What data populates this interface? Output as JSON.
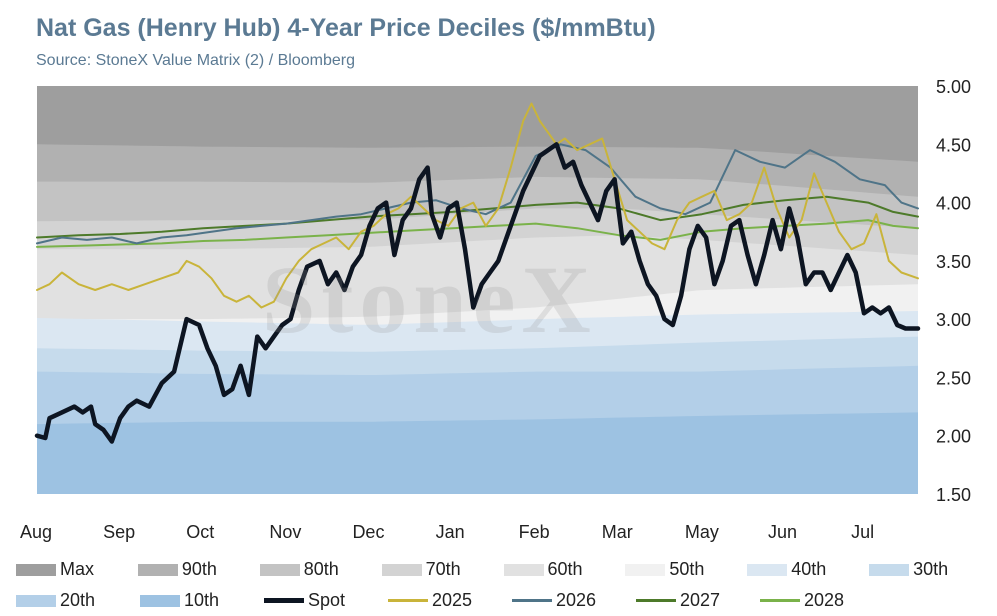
{
  "header": {
    "title": "Nat Gas (Henry Hub) 4-Year Price Deciles ($/mmBtu)",
    "subtitle": "Source: StoneX Value Matrix (2) / Bloomberg"
  },
  "watermark": "StoneX",
  "colors": {
    "Max": "#9e9e9e",
    "90th": "#b1b1b1",
    "80th": "#c3c3c3",
    "70th": "#d3d3d3",
    "60th": "#e1e1e1",
    "50th": "#f1f1f1",
    "40th": "#dbe7f2",
    "30th": "#c6dbec",
    "20th": "#b3cfe8",
    "10th": "#9dc2e2",
    "Spot": "#0d1522",
    "2025": "#c9b43a",
    "2026": "#4f7488",
    "2027": "#4d7a2a",
    "2028": "#7ab24a"
  },
  "chart_data": {
    "type": "area",
    "title": "Nat Gas (Henry Hub) 4-Year Price Deciles ($/mmBtu)",
    "ylim": [
      1.5,
      5.0
    ],
    "yticks": [
      "5.00",
      "4.50",
      "4.00",
      "3.50",
      "3.00",
      "2.50",
      "2.00",
      "1.50"
    ],
    "ytick_values": [
      5.0,
      4.5,
      4.0,
      3.5,
      3.0,
      2.5,
      2.0,
      1.5
    ],
    "months": [
      "Aug",
      "Sep",
      "Oct",
      "Nov",
      "Dec",
      "Jan",
      "Feb",
      "Mar",
      "May",
      "Jun",
      "Jul"
    ],
    "month_positions": [
      0,
      1,
      2,
      3,
      4,
      5,
      6,
      7,
      8,
      9,
      10
    ],
    "x_range": [
      0,
      10.6
    ],
    "grid": true,
    "legend_position": "bottom",
    "deciles": [
      {
        "name": "Max",
        "x": [
          0,
          10.6
        ],
        "values": [
          5.0,
          5.0
        ]
      },
      {
        "name": "90th",
        "x": [
          0,
          2,
          4,
          6,
          8,
          10.6
        ],
        "values": [
          4.5,
          4.48,
          4.47,
          4.48,
          4.47,
          4.35
        ]
      },
      {
        "name": "80th",
        "x": [
          0,
          2,
          4,
          6,
          8,
          10.6
        ],
        "values": [
          4.18,
          4.18,
          4.17,
          4.22,
          4.2,
          4.05
        ]
      },
      {
        "name": "70th",
        "x": [
          0,
          2,
          4,
          6,
          7,
          8,
          10.6
        ],
        "values": [
          3.84,
          3.85,
          3.85,
          3.95,
          3.95,
          3.9,
          3.78
        ]
      },
      {
        "name": "60th",
        "x": [
          0,
          2,
          4,
          6,
          7,
          8,
          10.6
        ],
        "values": [
          3.6,
          3.6,
          3.62,
          3.7,
          3.72,
          3.68,
          3.55
        ]
      },
      {
        "name": "50th",
        "x": [
          0,
          2,
          4,
          6,
          8,
          10.6
        ],
        "values": [
          3.0,
          3.0,
          3.02,
          3.1,
          3.25,
          3.3
        ]
      },
      {
        "name": "40th",
        "x": [
          0,
          2,
          4,
          6,
          8,
          10.6
        ],
        "values": [
          3.01,
          2.98,
          2.95,
          3.0,
          3.04,
          3.07
        ]
      },
      {
        "name": "30th",
        "x": [
          0,
          2,
          4,
          6,
          8,
          10.6
        ],
        "values": [
          2.75,
          2.73,
          2.72,
          2.75,
          2.8,
          2.85
        ]
      },
      {
        "name": "20th",
        "x": [
          0,
          2,
          4,
          6,
          8,
          10.6
        ],
        "values": [
          2.55,
          2.53,
          2.52,
          2.55,
          2.55,
          2.6
        ]
      },
      {
        "name": "10th",
        "x": [
          0,
          2,
          4,
          6,
          8,
          10.6
        ],
        "values": [
          2.1,
          2.12,
          2.12,
          2.14,
          2.17,
          2.2
        ]
      }
    ],
    "series": [
      {
        "name": "Spot",
        "x": [
          0,
          0.1,
          0.15,
          0.3,
          0.45,
          0.55,
          0.65,
          0.7,
          0.8,
          0.9,
          1.0,
          1.1,
          1.2,
          1.35,
          1.5,
          1.65,
          1.8,
          1.95,
          2.05,
          2.15,
          2.25,
          2.35,
          2.45,
          2.55,
          2.65,
          2.75,
          2.85,
          2.95,
          3.05,
          3.15,
          3.25,
          3.4,
          3.5,
          3.6,
          3.7,
          3.8,
          3.9,
          4.0,
          4.1,
          4.2,
          4.3,
          4.4,
          4.5,
          4.6,
          4.7,
          4.75,
          4.85,
          4.95,
          5.05,
          5.15,
          5.25,
          5.35,
          5.45,
          5.55,
          5.65,
          5.75,
          5.85,
          5.95,
          6.05,
          6.15,
          6.25,
          6.35,
          6.45,
          6.55,
          6.65,
          6.75,
          6.85,
          6.95,
          7.05,
          7.15,
          7.25,
          7.35,
          7.45,
          7.55,
          7.65,
          7.75,
          7.85,
          7.95,
          8.05,
          8.15,
          8.25,
          8.35,
          8.45,
          8.55,
          8.65,
          8.75,
          8.85,
          8.95,
          9.05,
          9.15,
          9.25,
          9.35,
          9.45,
          9.55,
          9.65,
          9.75,
          9.85,
          9.95,
          10.05,
          10.15,
          10.25,
          10.35,
          10.45,
          10.6
        ],
        "values": [
          2.0,
          1.98,
          2.15,
          2.2,
          2.25,
          2.2,
          2.25,
          2.1,
          2.05,
          1.95,
          2.15,
          2.25,
          2.3,
          2.25,
          2.45,
          2.55,
          3.0,
          2.95,
          2.75,
          2.6,
          2.35,
          2.4,
          2.6,
          2.35,
          2.85,
          2.75,
          2.85,
          2.95,
          3.0,
          3.25,
          3.45,
          3.5,
          3.3,
          3.4,
          3.25,
          3.45,
          3.55,
          3.8,
          3.95,
          4.0,
          3.55,
          3.85,
          3.95,
          4.2,
          4.3,
          3.9,
          3.7,
          3.95,
          4.0,
          3.6,
          3.1,
          3.3,
          3.4,
          3.5,
          3.7,
          3.9,
          4.1,
          4.25,
          4.4,
          4.45,
          4.5,
          4.3,
          4.35,
          4.15,
          4.0,
          3.85,
          4.1,
          4.2,
          3.65,
          3.75,
          3.5,
          3.3,
          3.2,
          3.0,
          2.95,
          3.2,
          3.6,
          3.8,
          3.7,
          3.3,
          3.5,
          3.8,
          3.85,
          3.55,
          3.3,
          3.55,
          3.85,
          3.6,
          3.95,
          3.7,
          3.3,
          3.4,
          3.4,
          3.25,
          3.4,
          3.55,
          3.4,
          3.05,
          3.1,
          3.05,
          3.1,
          2.95,
          2.92,
          2.92
        ]
      },
      {
        "name": "2025",
        "x": [
          0,
          0.15,
          0.3,
          0.5,
          0.7,
          0.9,
          1.1,
          1.3,
          1.5,
          1.7,
          1.8,
          1.95,
          2.1,
          2.25,
          2.4,
          2.55,
          2.7,
          2.85,
          3.0,
          3.15,
          3.3,
          3.45,
          3.6,
          3.75,
          3.9,
          4.05,
          4.2,
          4.35,
          4.5,
          4.65,
          4.8,
          4.95,
          5.1,
          5.25,
          5.4,
          5.55,
          5.7,
          5.85,
          5.95,
          6.05,
          6.15,
          6.25,
          6.35,
          6.5,
          6.65,
          6.8,
          6.95,
          7.1,
          7.25,
          7.4,
          7.55,
          7.7,
          7.85,
          8.0,
          8.15,
          8.3,
          8.45,
          8.6,
          8.75,
          8.9,
          9.05,
          9.2,
          9.35,
          9.5,
          9.65,
          9.8,
          9.95,
          10.1,
          10.25,
          10.4,
          10.6
        ],
        "values": [
          3.25,
          3.3,
          3.4,
          3.3,
          3.25,
          3.3,
          3.25,
          3.3,
          3.35,
          3.4,
          3.5,
          3.45,
          3.35,
          3.2,
          3.15,
          3.2,
          3.1,
          3.15,
          3.35,
          3.5,
          3.6,
          3.65,
          3.7,
          3.6,
          3.75,
          3.8,
          3.9,
          3.95,
          4.05,
          3.95,
          3.85,
          3.8,
          3.95,
          4.0,
          3.8,
          3.95,
          4.3,
          4.7,
          4.85,
          4.7,
          4.6,
          4.5,
          4.55,
          4.45,
          4.5,
          4.55,
          4.2,
          3.85,
          3.75,
          3.65,
          3.6,
          3.85,
          4.0,
          4.05,
          4.1,
          3.85,
          3.9,
          4.0,
          4.3,
          3.95,
          3.7,
          3.85,
          4.25,
          4.0,
          3.75,
          3.6,
          3.65,
          3.9,
          3.5,
          3.4,
          3.35
        ]
      },
      {
        "name": "2026",
        "x": [
          0,
          0.3,
          0.6,
          0.9,
          1.2,
          1.5,
          1.8,
          2.1,
          2.4,
          2.7,
          3.0,
          3.3,
          3.6,
          3.9,
          4.2,
          4.5,
          4.8,
          5.1,
          5.4,
          5.7,
          6.0,
          6.3,
          6.6,
          6.9,
          7.2,
          7.5,
          7.8,
          8.1,
          8.4,
          8.7,
          9.0,
          9.3,
          9.6,
          9.9,
          10.2,
          10.4,
          10.6
        ],
        "values": [
          3.65,
          3.7,
          3.68,
          3.7,
          3.65,
          3.7,
          3.72,
          3.75,
          3.78,
          3.8,
          3.82,
          3.85,
          3.88,
          3.9,
          3.95,
          4.0,
          4.02,
          3.95,
          3.9,
          4.0,
          4.4,
          4.5,
          4.45,
          4.3,
          4.05,
          3.95,
          3.9,
          4.0,
          4.45,
          4.35,
          4.3,
          4.45,
          4.35,
          4.2,
          4.15,
          4.0,
          3.95
        ]
      },
      {
        "name": "2027",
        "x": [
          0,
          0.5,
          1.0,
          1.5,
          2.0,
          2.5,
          3.0,
          3.5,
          4.0,
          4.5,
          5.0,
          5.5,
          6.0,
          6.5,
          7.0,
          7.5,
          8.0,
          8.5,
          9.0,
          9.5,
          10.0,
          10.3,
          10.6
        ],
        "values": [
          3.7,
          3.72,
          3.73,
          3.75,
          3.78,
          3.8,
          3.82,
          3.85,
          3.88,
          3.9,
          3.92,
          3.95,
          3.98,
          4.0,
          3.95,
          3.85,
          3.9,
          3.98,
          4.02,
          4.05,
          4.0,
          3.92,
          3.88
        ]
      },
      {
        "name": "2028",
        "x": [
          0,
          0.5,
          1.0,
          1.5,
          2.0,
          2.5,
          3.0,
          3.5,
          4.0,
          4.5,
          5.0,
          5.5,
          6.0,
          6.5,
          7.0,
          7.5,
          8.0,
          8.5,
          9.0,
          9.5,
          10.0,
          10.3,
          10.6
        ],
        "values": [
          3.62,
          3.63,
          3.64,
          3.65,
          3.67,
          3.68,
          3.7,
          3.72,
          3.74,
          3.76,
          3.78,
          3.8,
          3.82,
          3.78,
          3.72,
          3.68,
          3.75,
          3.78,
          3.8,
          3.82,
          3.85,
          3.8,
          3.78
        ]
      }
    ]
  },
  "legend": [
    {
      "key": "Max",
      "label": "Max",
      "kind": "area"
    },
    {
      "key": "90th",
      "label": "90th",
      "kind": "area"
    },
    {
      "key": "80th",
      "label": "80th",
      "kind": "area"
    },
    {
      "key": "70th",
      "label": "70th",
      "kind": "area"
    },
    {
      "key": "60th",
      "label": "60th",
      "kind": "area"
    },
    {
      "key": "50th",
      "label": "50th",
      "kind": "area"
    },
    {
      "key": "40th",
      "label": "40th",
      "kind": "area"
    },
    {
      "key": "30th",
      "label": "30th",
      "kind": "area"
    },
    {
      "key": "20th",
      "label": "20th",
      "kind": "area"
    },
    {
      "key": "10th",
      "label": "10th",
      "kind": "area"
    },
    {
      "key": "Spot",
      "label": "Spot",
      "kind": "spot"
    },
    {
      "key": "2025",
      "label": "2025",
      "kind": "line"
    },
    {
      "key": "2026",
      "label": "2026",
      "kind": "line"
    },
    {
      "key": "2027",
      "label": "2027",
      "kind": "line"
    },
    {
      "key": "2028",
      "label": "2028",
      "kind": "line"
    }
  ]
}
